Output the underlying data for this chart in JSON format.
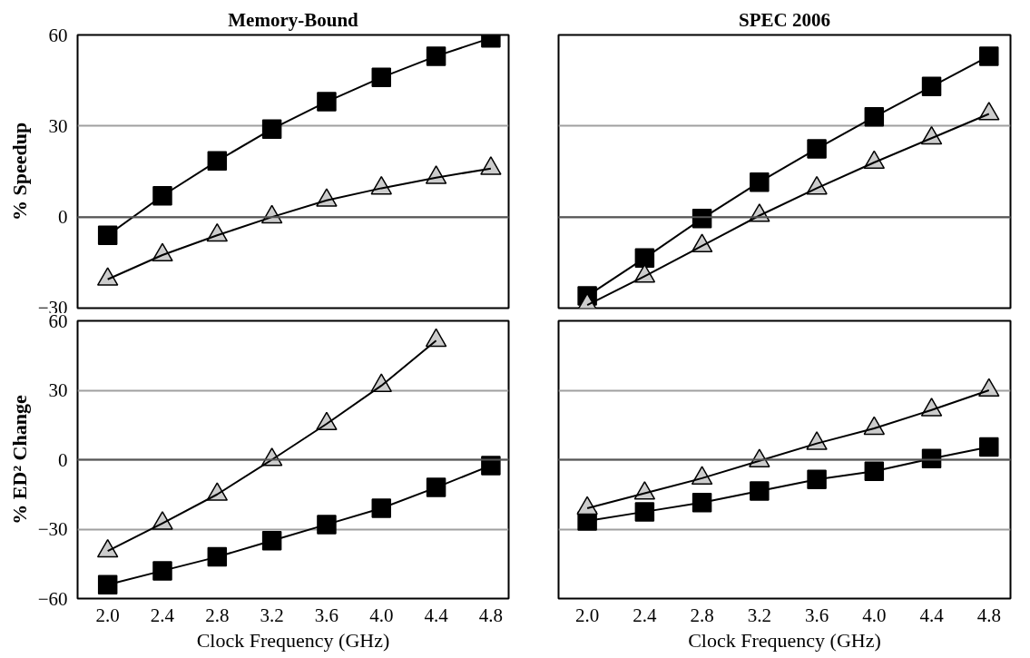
{
  "chart_data": [
    {
      "type": "line",
      "title": "Memory-Bound",
      "ylabel": "% Speedup",
      "x": [
        2.0,
        2.4,
        2.8,
        3.2,
        3.6,
        4.0,
        4.4,
        4.8
      ],
      "xlim": [
        1.78,
        4.93
      ],
      "ylim": [
        -30,
        60
      ],
      "yticks": [
        -30,
        0,
        30,
        60
      ],
      "tick_labels": "y",
      "grid": "y",
      "ref_lines": [
        {
          "axis": "y",
          "value": 0,
          "color": "#555555"
        }
      ],
      "series": [
        {
          "color": "#000000",
          "marker": "square",
          "values": [
            -6,
            7,
            18.5,
            29,
            38,
            46,
            53,
            59
          ]
        },
        {
          "color": "#cccccc",
          "marker": "triangle",
          "values": [
            -20.5,
            -12.5,
            -6,
            0,
            5.5,
            9.5,
            13,
            16
          ]
        }
      ]
    },
    {
      "type": "line",
      "title": "SPEC 2006",
      "x": [
        2.0,
        2.4,
        2.8,
        3.2,
        3.6,
        4.0,
        4.4,
        4.8
      ],
      "xlim": [
        1.8,
        4.95
      ],
      "ylim": [
        -30,
        60
      ],
      "yticks": [
        -30,
        0,
        30,
        60
      ],
      "tick_labels": false,
      "grid": "y",
      "ref_lines": [
        {
          "axis": "y",
          "value": 0,
          "color": "#555555"
        }
      ],
      "series": [
        {
          "color": "#000000",
          "marker": "square",
          "values": [
            -26,
            -13.5,
            -0.5,
            11.5,
            22.5,
            33,
            43,
            53
          ]
        },
        {
          "color": "#cccccc",
          "marker": "triangle",
          "values": [
            -29,
            -19.5,
            -9.5,
            0.5,
            9.5,
            18,
            26,
            34
          ]
        }
      ]
    },
    {
      "type": "line",
      "ylabel": "% ED² Change",
      "xlabel": "Clock Frequency (GHz)",
      "x": [
        2.0,
        2.4,
        2.8,
        3.2,
        3.6,
        4.0,
        4.4,
        4.8
      ],
      "xlim": [
        1.78,
        4.93
      ],
      "xticks": [
        {
          "value": 2.0,
          "label": "2.0"
        },
        {
          "value": 2.4,
          "label": "2.4"
        },
        {
          "value": 2.8,
          "label": "2.8"
        },
        {
          "value": 3.2,
          "label": "3.2"
        },
        {
          "value": 3.6,
          "label": "3.6"
        },
        {
          "value": 4.0,
          "label": "4.0"
        },
        {
          "value": 4.4,
          "label": "4.4"
        },
        {
          "value": 4.8,
          "label": "4.8"
        }
      ],
      "ylim": [
        -60,
        60
      ],
      "yticks": [
        -60,
        -30,
        0,
        30,
        60
      ],
      "grid": "y",
      "ref_lines": [
        {
          "axis": "y",
          "value": 0,
          "color": "#555555"
        }
      ],
      "series": [
        {
          "color": "#000000",
          "marker": "square",
          "values": [
            -54,
            -48,
            -42,
            -35,
            -28,
            -21,
            -12,
            -2.5
          ]
        },
        {
          "color": "#cccccc",
          "marker": "triangle",
          "values": [
            -39.5,
            -27.5,
            -15,
            0,
            15.5,
            32,
            51.5,
            null
          ]
        }
      ]
    },
    {
      "type": "line",
      "xlabel": "Clock Frequency (GHz)",
      "x": [
        2.0,
        2.4,
        2.8,
        3.2,
        3.6,
        4.0,
        4.4,
        4.8
      ],
      "xlim": [
        1.8,
        4.95
      ],
      "xticks": [
        {
          "value": 2.0,
          "label": "2.0"
        },
        {
          "value": 2.4,
          "label": "2.4"
        },
        {
          "value": 2.8,
          "label": "2.8"
        },
        {
          "value": 3.2,
          "label": "3.2"
        },
        {
          "value": 3.6,
          "label": "3.6"
        },
        {
          "value": 4.0,
          "label": "4.0"
        },
        {
          "value": 4.4,
          "label": "4.4"
        },
        {
          "value": 4.8,
          "label": "4.8"
        }
      ],
      "ylim": [
        -60,
        60
      ],
      "yticks": [
        -60,
        -30,
        0,
        30,
        60
      ],
      "tick_labels": "x",
      "grid": "y",
      "ref_lines": [
        {
          "axis": "y",
          "value": 0,
          "color": "#555555"
        }
      ],
      "series": [
        {
          "color": "#000000",
          "marker": "square",
          "values": [
            -26.5,
            -22.5,
            -18.5,
            -13.5,
            -8.5,
            -5,
            0.5,
            5.5
          ]
        },
        {
          "color": "#cccccc",
          "marker": "triangle",
          "values": [
            -21,
            -14.5,
            -8,
            -0.5,
            7,
            13.5,
            21.5,
            30
          ]
        }
      ]
    }
  ]
}
